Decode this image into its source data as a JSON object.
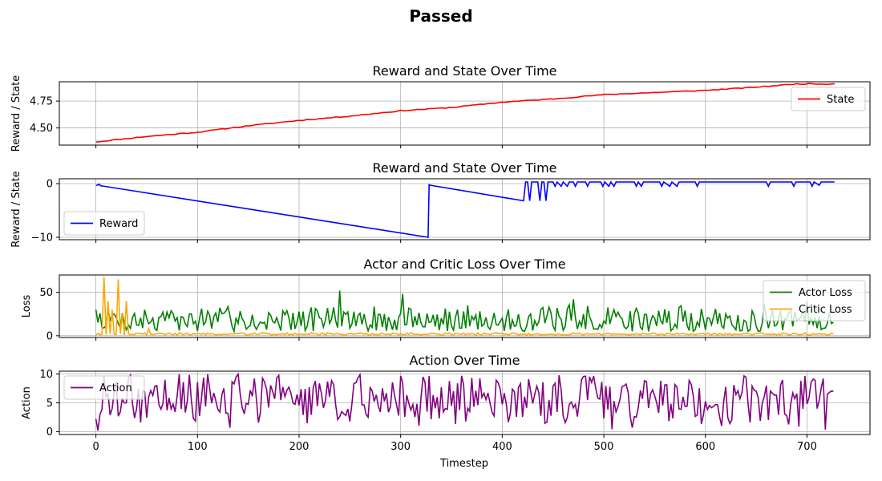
{
  "figure": {
    "title": "Passed",
    "xlabel": "Timestep"
  },
  "chart_data": [
    {
      "type": "line",
      "title": "Reward and State Over Time",
      "ylabel": "Reward / State",
      "xlim": [
        -36,
        762
      ],
      "ylim": [
        4.34,
        4.93
      ],
      "xticks": [
        0,
        100,
        200,
        300,
        400,
        500,
        600,
        700
      ],
      "yticks": [
        4.5,
        4.75
      ],
      "ytick_labels": [
        "4.50",
        "4.75"
      ],
      "grid": true,
      "legend": "right",
      "series": [
        {
          "name": "State",
          "color": "#ff0000",
          "kind": "linear_noise",
          "points": [
            [
              0,
              4.37
            ],
            [
              50,
              4.42
            ],
            [
              100,
              4.46
            ],
            [
              150,
              4.52
            ],
            [
              200,
              4.57
            ],
            [
              250,
              4.61
            ],
            [
              300,
              4.66
            ],
            [
              350,
              4.69
            ],
            [
              400,
              4.74
            ],
            [
              450,
              4.77
            ],
            [
              500,
              4.81
            ],
            [
              550,
              4.83
            ],
            [
              600,
              4.85
            ],
            [
              650,
              4.88
            ],
            [
              690,
              4.91
            ],
            [
              727,
              4.91
            ]
          ]
        }
      ]
    },
    {
      "type": "line",
      "title": "Reward and State Over Time",
      "ylabel": "Reward / State",
      "xlim": [
        -36,
        762
      ],
      "ylim": [
        -10.45,
        0.9
      ],
      "xticks": [
        0,
        100,
        200,
        300,
        400,
        500,
        600,
        700
      ],
      "yticks": [
        -10,
        0
      ],
      "ytick_labels": [
        "−10",
        "0"
      ],
      "grid": true,
      "legend": "left",
      "series": [
        {
          "name": "Reward",
          "color": "#0000ff",
          "kind": "explicit",
          "points": [
            [
              0,
              -0.3
            ],
            [
              2,
              -0.3
            ],
            [
              3,
              -0.1
            ],
            [
              5,
              -0.4
            ],
            [
              327,
              -10
            ],
            [
              328,
              -0.2
            ],
            [
              329,
              -0.3
            ],
            [
              421,
              -3.2
            ],
            [
              423,
              0.3
            ],
            [
              425,
              0.3
            ],
            [
              427,
              -3.2
            ],
            [
              429,
              0.3
            ],
            [
              435,
              0.3
            ],
            [
              437,
              -3.2
            ],
            [
              439,
              0.3
            ],
            [
              441,
              0.3
            ],
            [
              443,
              -3.2
            ],
            [
              445,
              0.3
            ],
            [
              450,
              0.3
            ],
            [
              452,
              -0.5
            ],
            [
              454,
              0.3
            ],
            [
              458,
              -0.5
            ],
            [
              460,
              0.3
            ],
            [
              464,
              -0.5
            ],
            [
              466,
              0.3
            ],
            [
              470,
              0.3
            ],
            [
              472,
              -0.5
            ],
            [
              474,
              0.3
            ],
            [
              482,
              0.3
            ],
            [
              484,
              -0.5
            ],
            [
              486,
              0.3
            ],
            [
              497,
              0.3
            ],
            [
              499,
              -0.5
            ],
            [
              501,
              0.3
            ],
            [
              505,
              -0.5
            ],
            [
              507,
              0.3
            ],
            [
              510,
              -0.5
            ],
            [
              512,
              0.3
            ],
            [
              530,
              0.3
            ],
            [
              532,
              -0.5
            ],
            [
              534,
              0.3
            ],
            [
              537,
              -0.5
            ],
            [
              539,
              0.3
            ],
            [
              555,
              0.3
            ],
            [
              557,
              -0.5
            ],
            [
              559,
              0.3
            ],
            [
              565,
              -0.5
            ],
            [
              567,
              0.3
            ],
            [
              572,
              -0.5
            ],
            [
              574,
              0.3
            ],
            [
              590,
              0.3
            ],
            [
              592,
              -0.5
            ],
            [
              594,
              0.3
            ],
            [
              660,
              0.3
            ],
            [
              662,
              -0.5
            ],
            [
              664,
              0.3
            ],
            [
              685,
              0.3
            ],
            [
              687,
              -0.5
            ],
            [
              689,
              0.3
            ],
            [
              703,
              0.3
            ],
            [
              705,
              -0.5
            ],
            [
              707,
              0.3
            ],
            [
              712,
              -0.3
            ],
            [
              714,
              0.3
            ],
            [
              727,
              0.3
            ]
          ]
        }
      ]
    },
    {
      "type": "line",
      "title": "Actor and Critic Loss Over Time",
      "ylabel": "Loss",
      "xlim": [
        -36,
        762
      ],
      "ylim": [
        -2,
        70
      ],
      "xticks": [
        0,
        100,
        200,
        300,
        400,
        500,
        600,
        700
      ],
      "yticks": [
        0,
        50
      ],
      "ytick_labels": [
        "0",
        "50"
      ],
      "grid": true,
      "legend": "right",
      "series": [
        {
          "name": "Actor Loss",
          "color": "#008000",
          "kind": "noise",
          "x_start": 0,
          "x_end": 727,
          "base": 18,
          "amp": 28,
          "min": 5,
          "max": 52,
          "seed": 7,
          "spikes": [
            [
              0,
              30
            ],
            [
              240,
              52
            ],
            [
              302,
              48
            ],
            [
              470,
              42
            ],
            [
              700,
              40
            ]
          ]
        },
        {
          "name": "Critic Loss",
          "color": "#ffa500",
          "kind": "noise",
          "x_start": 0,
          "x_end": 727,
          "base": 2,
          "amp": 2.5,
          "min": 0,
          "max": 6,
          "seed": 19,
          "spikes": [
            [
              8,
              68
            ],
            [
              12,
              40
            ],
            [
              16,
              30
            ],
            [
              22,
              65
            ],
            [
              26,
              25
            ],
            [
              30,
              40
            ],
            [
              35,
              20
            ],
            [
              45,
              10
            ],
            [
              52,
              8
            ]
          ]
        }
      ]
    },
    {
      "type": "line",
      "title": "Action Over Time",
      "ylabel": "Action",
      "xlim": [
        -36,
        762
      ],
      "ylim": [
        -0.5,
        10.5
      ],
      "xticks": [
        0,
        100,
        200,
        300,
        400,
        500,
        600,
        700
      ],
      "yticks": [
        0,
        5,
        10
      ],
      "ytick_labels": [
        "0",
        "5",
        "10"
      ],
      "grid": true,
      "legend": "left",
      "series": [
        {
          "name": "Action",
          "color": "#800080",
          "kind": "noise",
          "x_start": 0,
          "x_end": 727,
          "base": 5.8,
          "amp": 8,
          "min": 0,
          "max": 10,
          "seed": 3,
          "spikes": [
            [
              0,
              2.2
            ],
            [
              2,
              0.2
            ],
            [
              4,
              3.0
            ]
          ]
        }
      ]
    }
  ]
}
